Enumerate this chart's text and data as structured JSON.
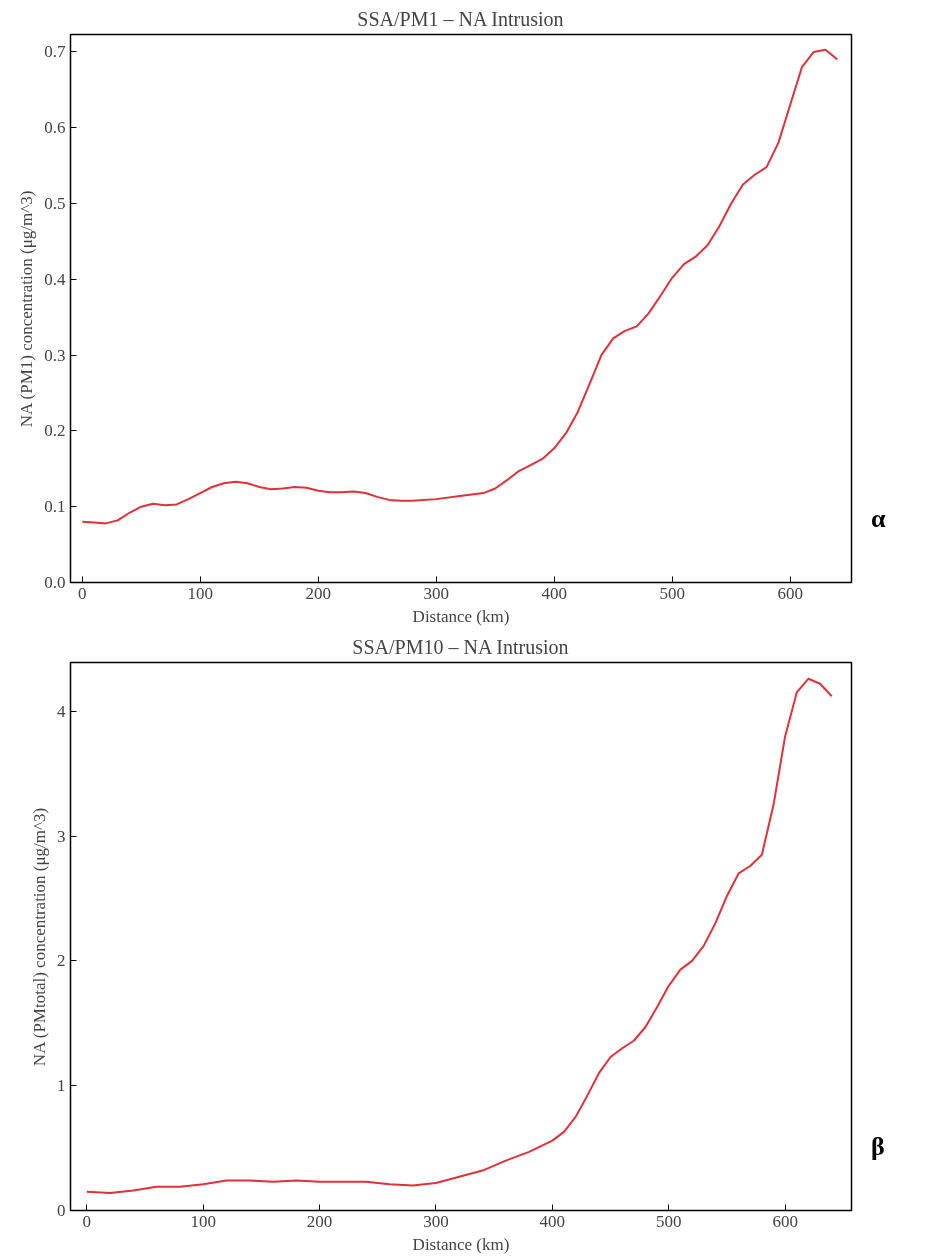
{
  "chart_data": [
    {
      "type": "line",
      "title": "SSA/PM1 – NA Intrusion",
      "xlabel": "Distance (km)",
      "ylabel": "NA (PM1) concentration (μg/m^3)",
      "x": [
        0,
        10,
        20,
        30,
        40,
        50,
        60,
        70,
        80,
        90,
        100,
        110,
        120,
        130,
        140,
        150,
        160,
        170,
        180,
        190,
        200,
        210,
        220,
        230,
        240,
        250,
        260,
        270,
        280,
        300,
        320,
        340,
        350,
        360,
        370,
        380,
        390,
        400,
        410,
        420,
        430,
        440,
        450,
        460,
        470,
        480,
        490,
        500,
        510,
        520,
        530,
        540,
        550,
        560,
        570,
        580,
        590,
        600,
        610,
        620,
        630,
        640
      ],
      "series": [
        {
          "color": "#e0303a",
          "values": [
            0.08,
            0.079,
            0.078,
            0.082,
            0.092,
            0.1,
            0.104,
            0.102,
            0.103,
            0.11,
            0.118,
            0.126,
            0.131,
            0.133,
            0.131,
            0.126,
            0.123,
            0.124,
            0.126,
            0.125,
            0.121,
            0.119,
            0.119,
            0.12,
            0.118,
            0.113,
            0.109,
            0.108,
            0.108,
            0.11,
            0.114,
            0.118,
            0.124,
            0.135,
            0.147,
            0.155,
            0.163,
            0.177,
            0.197,
            0.225,
            0.262,
            0.3,
            0.322,
            0.332,
            0.338,
            0.355,
            0.378,
            0.402,
            0.42,
            0.43,
            0.445,
            0.47,
            0.5,
            0.525,
            0.538,
            0.548,
            0.58,
            0.63,
            0.68,
            0.7,
            0.703,
            0.69
          ]
        }
      ],
      "xlim": [
        -10,
        652
      ],
      "ylim": [
        0,
        0.723
      ],
      "xticks": [
        0,
        100,
        200,
        300,
        400,
        500,
        600
      ],
      "yticks": [
        {
          "value": 0,
          "label": "0.0"
        },
        0.1,
        0.2,
        0.3,
        0.4,
        0.5,
        0.6,
        0.7
      ],
      "grid": false,
      "annotations": [
        "α"
      ]
    },
    {
      "type": "line",
      "title": "SSA/PM10 – NA Intrusion",
      "xlabel": "Distance (km)",
      "ylabel": "NA (PMtotal) concentration (μg/m^3)",
      "x": [
        0,
        20,
        40,
        60,
        80,
        100,
        120,
        140,
        160,
        180,
        200,
        220,
        240,
        260,
        280,
        300,
        320,
        340,
        360,
        380,
        400,
        410,
        420,
        430,
        440,
        450,
        460,
        470,
        480,
        490,
        500,
        510,
        520,
        530,
        540,
        550,
        560,
        570,
        580,
        590,
        600,
        610,
        620,
        630,
        640
      ],
      "series": [
        {
          "color": "#e0303a",
          "values": [
            0.15,
            0.14,
            0.16,
            0.19,
            0.19,
            0.21,
            0.24,
            0.24,
            0.23,
            0.24,
            0.23,
            0.23,
            0.23,
            0.21,
            0.2,
            0.22,
            0.27,
            0.32,
            0.4,
            0.47,
            0.56,
            0.63,
            0.75,
            0.92,
            1.1,
            1.23,
            1.3,
            1.36,
            1.47,
            1.63,
            1.8,
            1.93,
            2.0,
            2.12,
            2.3,
            2.52,
            2.7,
            2.76,
            2.85,
            3.25,
            3.8,
            4.15,
            4.26,
            4.22,
            4.12
          ]
        }
      ],
      "xlim": [
        -14,
        657
      ],
      "ylim": [
        0,
        4.39
      ],
      "xticks": [
        0,
        100,
        200,
        300,
        400,
        500,
        600
      ],
      "yticks": [
        0,
        1,
        2,
        3,
        4
      ],
      "grid": false,
      "annotations": [
        "β"
      ]
    }
  ]
}
